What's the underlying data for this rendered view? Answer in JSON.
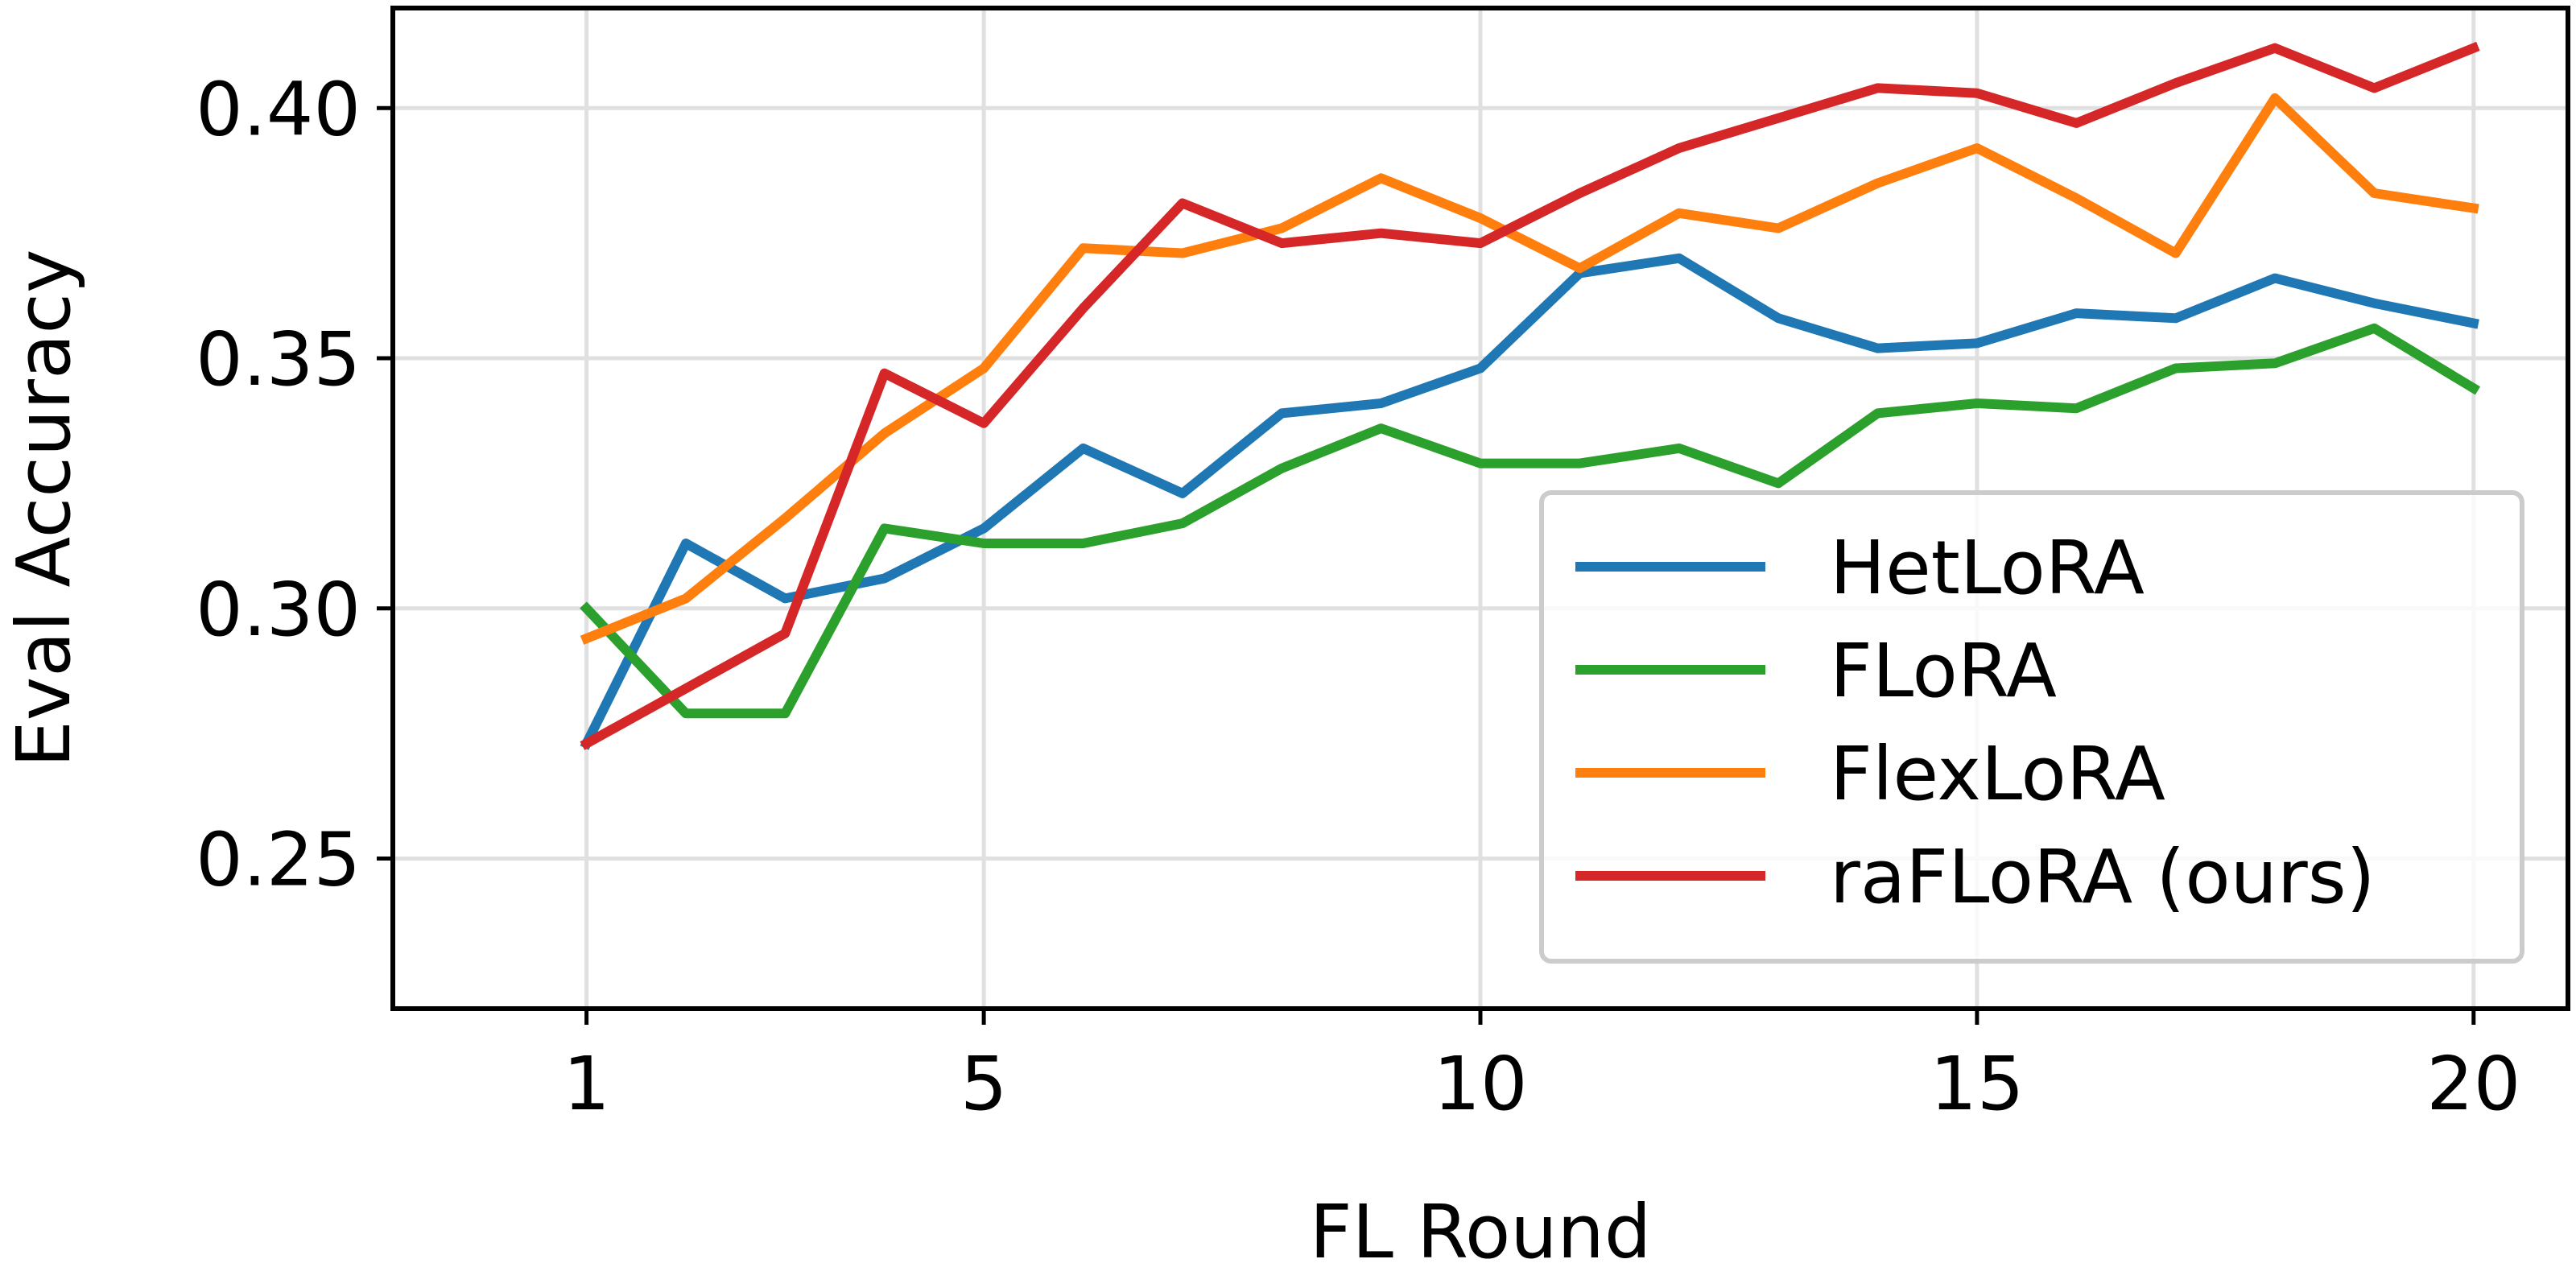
{
  "chart_data": {
    "type": "line",
    "xlabel": "FL Round",
    "ylabel": "Eval Accuracy",
    "xlim": [
      -0.95,
      20.95
    ],
    "ylim": [
      0.22,
      0.42
    ],
    "xticks": [
      1,
      5,
      10,
      15,
      20
    ],
    "xtick_labels": [
      "1",
      "5",
      "10",
      "15",
      "20"
    ],
    "yticks": [
      0.25,
      0.3,
      0.35,
      0.4
    ],
    "ytick_labels": [
      "0.25",
      "0.30",
      "0.35",
      "0.40"
    ],
    "grid": true,
    "legend_position": "lower-right",
    "x": [
      1,
      2,
      3,
      4,
      5,
      6,
      7,
      8,
      9,
      10,
      11,
      12,
      13,
      14,
      15,
      16,
      17,
      18,
      19,
      20
    ],
    "series": [
      {
        "name": "HetLoRA",
        "color": "#1f77b4",
        "values": [
          0.273,
          0.313,
          0.302,
          0.306,
          0.316,
          0.332,
          0.323,
          0.339,
          0.341,
          0.348,
          0.367,
          0.37,
          0.358,
          0.352,
          0.353,
          0.359,
          0.358,
          0.366,
          0.361,
          0.357
        ]
      },
      {
        "name": "FLoRA",
        "color": "#2ca02c",
        "values": [
          0.3,
          0.279,
          0.279,
          0.316,
          0.313,
          0.313,
          0.317,
          0.328,
          0.336,
          0.329,
          0.329,
          0.332,
          0.325,
          0.339,
          0.341,
          0.34,
          0.348,
          0.349,
          0.356,
          0.344
        ]
      },
      {
        "name": "FlexLoRA",
        "color": "#ff7f0e",
        "values": [
          0.294,
          0.302,
          0.318,
          0.335,
          0.348,
          0.372,
          0.371,
          0.376,
          0.386,
          0.378,
          0.368,
          0.379,
          0.376,
          0.385,
          0.392,
          0.382,
          0.371,
          0.402,
          0.383,
          0.38
        ]
      },
      {
        "name": "raFLoRA (ours)",
        "color": "#d62728",
        "values": [
          0.273,
          0.284,
          0.295,
          0.347,
          0.337,
          0.36,
          0.381,
          0.373,
          0.375,
          0.373,
          0.383,
          0.392,
          0.398,
          0.404,
          0.403,
          0.397,
          0.405,
          0.412,
          0.404,
          0.412
        ]
      }
    ]
  }
}
